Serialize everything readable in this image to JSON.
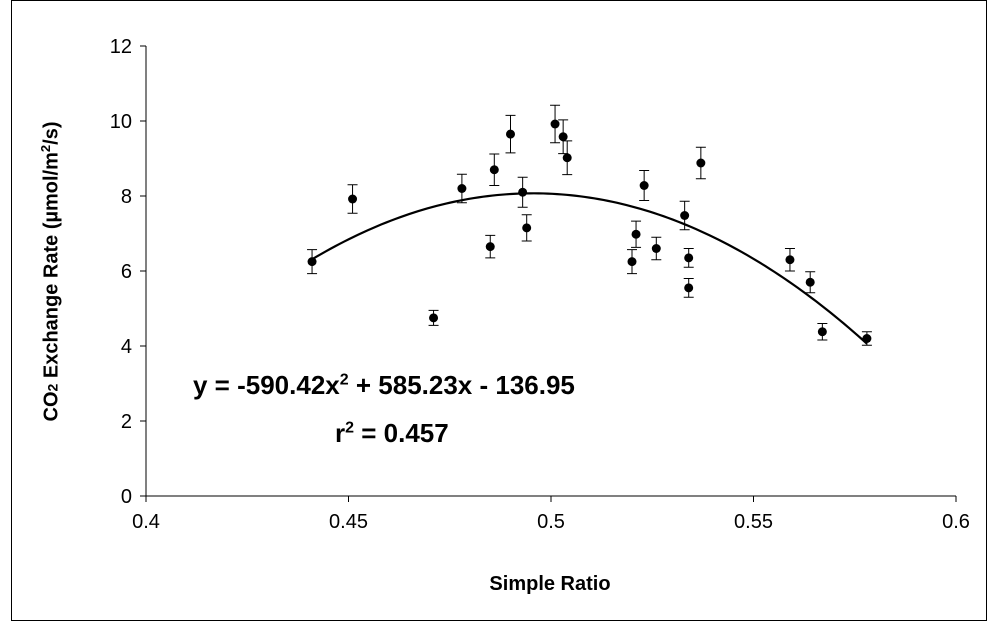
{
  "chart_data": {
    "type": "scatter",
    "xlabel": "Simple Ratio",
    "ylabel": {
      "prefix": "CO",
      "sub": "2",
      "middle": " Exchange Rate (µmol/m",
      "sup": "2",
      "suffix": "/s)"
    },
    "xlim": [
      0.4,
      0.6
    ],
    "ylim": [
      0,
      12
    ],
    "xticks": [
      "0.4",
      "0.45",
      "0.5",
      "0.55",
      "0.6"
    ],
    "yticks": [
      "0",
      "2",
      "4",
      "6",
      "8",
      "10",
      "12"
    ],
    "grid": false,
    "legend": "none",
    "points": [
      {
        "x": 0.441,
        "y": 6.25,
        "err": 0.32
      },
      {
        "x": 0.451,
        "y": 7.92,
        "err": 0.38
      },
      {
        "x": 0.471,
        "y": 4.75,
        "err": 0.2
      },
      {
        "x": 0.478,
        "y": 8.2,
        "err": 0.38
      },
      {
        "x": 0.485,
        "y": 6.65,
        "err": 0.3
      },
      {
        "x": 0.486,
        "y": 8.7,
        "err": 0.42
      },
      {
        "x": 0.49,
        "y": 9.65,
        "err": 0.5
      },
      {
        "x": 0.493,
        "y": 8.1,
        "err": 0.4
      },
      {
        "x": 0.494,
        "y": 7.15,
        "err": 0.35
      },
      {
        "x": 0.501,
        "y": 9.92,
        "err": 0.5
      },
      {
        "x": 0.503,
        "y": 9.58,
        "err": 0.45
      },
      {
        "x": 0.504,
        "y": 9.02,
        "err": 0.45
      },
      {
        "x": 0.52,
        "y": 6.25,
        "err": 0.32
      },
      {
        "x": 0.521,
        "y": 6.98,
        "err": 0.35
      },
      {
        "x": 0.523,
        "y": 8.28,
        "err": 0.4
      },
      {
        "x": 0.526,
        "y": 6.6,
        "err": 0.3
      },
      {
        "x": 0.533,
        "y": 7.48,
        "err": 0.38
      },
      {
        "x": 0.534,
        "y": 6.35,
        "err": 0.25
      },
      {
        "x": 0.534,
        "y": 5.55,
        "err": 0.25
      },
      {
        "x": 0.537,
        "y": 8.88,
        "err": 0.42
      },
      {
        "x": 0.559,
        "y": 6.3,
        "err": 0.3
      },
      {
        "x": 0.564,
        "y": 5.7,
        "err": 0.28
      },
      {
        "x": 0.567,
        "y": 4.38,
        "err": 0.22
      },
      {
        "x": 0.578,
        "y": 4.2,
        "err": 0.18
      }
    ],
    "trendline": {
      "type": "polynomial",
      "coefficients": [
        -590.42,
        585.23,
        -136.95
      ],
      "x_range": [
        0.441,
        0.578
      ]
    },
    "annotations": {
      "equation": {
        "main": "y = -590.42x",
        "sup": "2",
        "rest": " + 585.23x - 136.95"
      },
      "r2": {
        "main": "r",
        "sup": "2",
        "rest": " = 0.457"
      }
    }
  },
  "colors": {
    "marker": "#000000",
    "line": "#000000",
    "axis": "#000000",
    "border": "#000000",
    "background": "#ffffff"
  }
}
